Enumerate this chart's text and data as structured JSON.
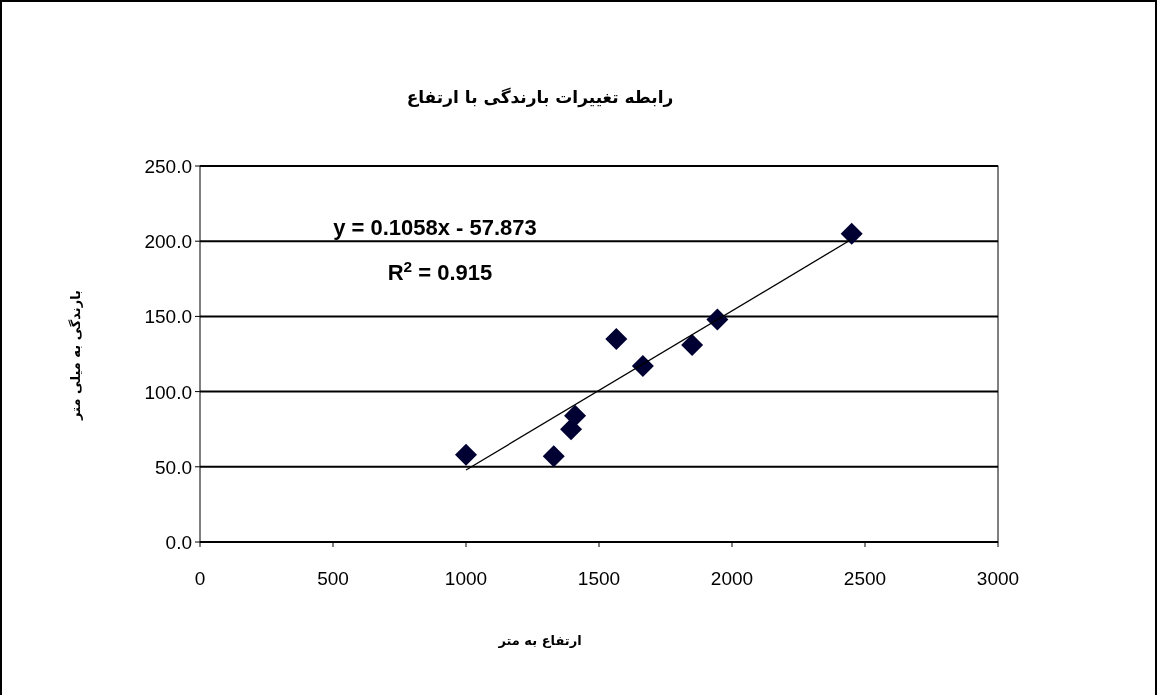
{
  "chart_data": {
    "type": "scatter",
    "title": "رابطه تغییرات بارندگی با ارتفاع",
    "xlabel": "ارتفاع به متر",
    "ylabel": "بارندگی به میلی متر",
    "xlim": [
      0,
      3000
    ],
    "xticks": [
      0,
      500,
      1000,
      1500,
      2000,
      2500,
      3000
    ],
    "ylim": [
      0,
      250
    ],
    "yticks": [
      {
        "value": 0,
        "label": "0.0"
      },
      {
        "value": 50,
        "label": "50.0"
      },
      {
        "value": 100,
        "label": "100.0"
      },
      {
        "value": 150,
        "label": "150.0"
      },
      {
        "value": 200,
        "label": "200.0"
      },
      {
        "value": 250,
        "label": "250.0"
      }
    ],
    "grid": "y",
    "marker": "diamond",
    "series": [
      {
        "color": "#000033",
        "x": [
          1000,
          1330,
          1395,
          1410,
          1565,
          1665,
          1850,
          1945,
          2450
        ],
        "values": [
          58,
          57,
          75,
          84,
          135,
          117,
          131,
          148,
          205
        ]
      },
      {
        "type": "line",
        "color": "#000000",
        "marker": "none",
        "x": [
          1000,
          2450
        ],
        "values": [
          47.9,
          201.3
        ]
      }
    ],
    "annotations": [
      "y = 0.1058x  - 57.873",
      "R$^{2}$ = 0.915"
    ]
  }
}
